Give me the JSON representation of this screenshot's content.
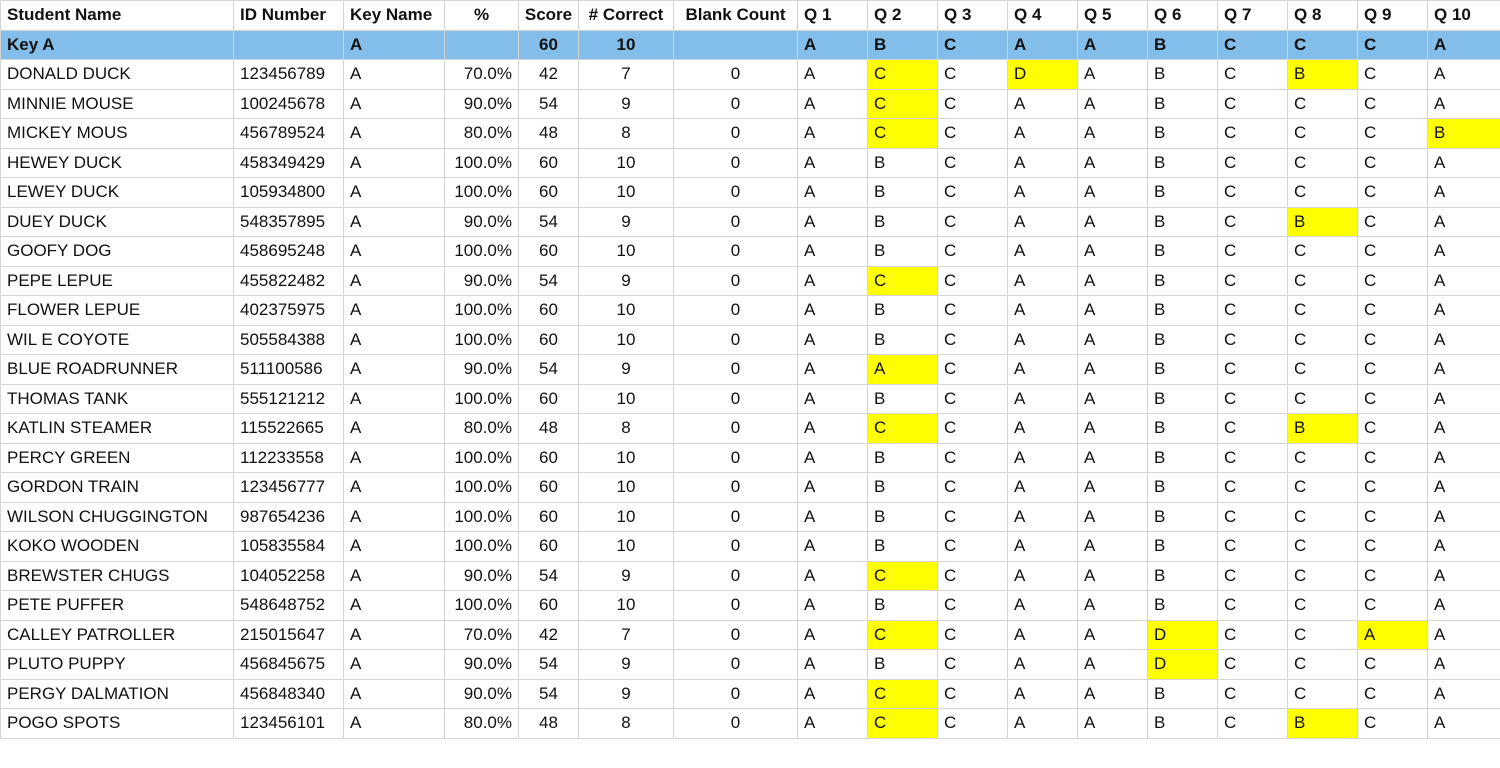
{
  "colors": {
    "key_row": "#83bde9",
    "wrong_answer": "#ffff00"
  },
  "headers": [
    "Student Name",
    "ID Number",
    "Key Name",
    "%",
    "Score",
    "# Correct",
    "Blank Count",
    "Q 1",
    "Q 2",
    "Q 3",
    "Q 4",
    "Q 5",
    "Q 6",
    "Q 7",
    "Q 8",
    "Q 9",
    "Q 10"
  ],
  "key_row": {
    "name": "Key A",
    "id": "",
    "key": "A",
    "pct": "",
    "score": "60",
    "correct": "10",
    "blank": "",
    "answers": [
      "A",
      "B",
      "C",
      "A",
      "A",
      "B",
      "C",
      "C",
      "C",
      "A"
    ]
  },
  "rows": [
    {
      "name": "DONALD DUCK",
      "id": "123456789",
      "key": "A",
      "pct": "70.0%",
      "score": "42",
      "correct": "7",
      "blank": "0",
      "answers": [
        "A",
        "C",
        "C",
        "D",
        "A",
        "B",
        "C",
        "B",
        "C",
        "A"
      ],
      "wrong": [
        false,
        true,
        false,
        true,
        false,
        false,
        false,
        true,
        false,
        false
      ]
    },
    {
      "name": "MINNIE MOUSE",
      "id": "100245678",
      "key": "A",
      "pct": "90.0%",
      "score": "54",
      "correct": "9",
      "blank": "0",
      "answers": [
        "A",
        "C",
        "C",
        "A",
        "A",
        "B",
        "C",
        "C",
        "C",
        "A"
      ],
      "wrong": [
        false,
        true,
        false,
        false,
        false,
        false,
        false,
        false,
        false,
        false
      ]
    },
    {
      "name": "MICKEY MOUS",
      "id": "456789524",
      "key": "A",
      "pct": "80.0%",
      "score": "48",
      "correct": "8",
      "blank": "0",
      "answers": [
        "A",
        "C",
        "C",
        "A",
        "A",
        "B",
        "C",
        "C",
        "C",
        "B"
      ],
      "wrong": [
        false,
        true,
        false,
        false,
        false,
        false,
        false,
        false,
        false,
        true
      ]
    },
    {
      "name": "HEWEY DUCK",
      "id": "458349429",
      "key": "A",
      "pct": "100.0%",
      "score": "60",
      "correct": "10",
      "blank": "0",
      "answers": [
        "A",
        "B",
        "C",
        "A",
        "A",
        "B",
        "C",
        "C",
        "C",
        "A"
      ],
      "wrong": [
        false,
        false,
        false,
        false,
        false,
        false,
        false,
        false,
        false,
        false
      ]
    },
    {
      "name": "LEWEY DUCK",
      "id": "105934800",
      "key": "A",
      "pct": "100.0%",
      "score": "60",
      "correct": "10",
      "blank": "0",
      "answers": [
        "A",
        "B",
        "C",
        "A",
        "A",
        "B",
        "C",
        "C",
        "C",
        "A"
      ],
      "wrong": [
        false,
        false,
        false,
        false,
        false,
        false,
        false,
        false,
        false,
        false
      ]
    },
    {
      "name": "DUEY DUCK",
      "id": "548357895",
      "key": "A",
      "pct": "90.0%",
      "score": "54",
      "correct": "9",
      "blank": "0",
      "answers": [
        "A",
        "B",
        "C",
        "A",
        "A",
        "B",
        "C",
        "B",
        "C",
        "A"
      ],
      "wrong": [
        false,
        false,
        false,
        false,
        false,
        false,
        false,
        true,
        false,
        false
      ]
    },
    {
      "name": "GOOFY DOG",
      "id": "458695248",
      "key": "A",
      "pct": "100.0%",
      "score": "60",
      "correct": "10",
      "blank": "0",
      "answers": [
        "A",
        "B",
        "C",
        "A",
        "A",
        "B",
        "C",
        "C",
        "C",
        "A"
      ],
      "wrong": [
        false,
        false,
        false,
        false,
        false,
        false,
        false,
        false,
        false,
        false
      ]
    },
    {
      "name": "PEPE LEPUE",
      "id": "455822482",
      "key": "A",
      "pct": "90.0%",
      "score": "54",
      "correct": "9",
      "blank": "0",
      "answers": [
        "A",
        "C",
        "C",
        "A",
        "A",
        "B",
        "C",
        "C",
        "C",
        "A"
      ],
      "wrong": [
        false,
        true,
        false,
        false,
        false,
        false,
        false,
        false,
        false,
        false
      ]
    },
    {
      "name": "FLOWER LEPUE",
      "id": "402375975",
      "key": "A",
      "pct": "100.0%",
      "score": "60",
      "correct": "10",
      "blank": "0",
      "answers": [
        "A",
        "B",
        "C",
        "A",
        "A",
        "B",
        "C",
        "C",
        "C",
        "A"
      ],
      "wrong": [
        false,
        false,
        false,
        false,
        false,
        false,
        false,
        false,
        false,
        false
      ]
    },
    {
      "name": "WIL E COYOTE",
      "id": "505584388",
      "key": "A",
      "pct": "100.0%",
      "score": "60",
      "correct": "10",
      "blank": "0",
      "answers": [
        "A",
        "B",
        "C",
        "A",
        "A",
        "B",
        "C",
        "C",
        "C",
        "A"
      ],
      "wrong": [
        false,
        false,
        false,
        false,
        false,
        false,
        false,
        false,
        false,
        false
      ]
    },
    {
      "name": "BLUE ROADRUNNER",
      "id": "511100586",
      "key": "A",
      "pct": "90.0%",
      "score": "54",
      "correct": "9",
      "blank": "0",
      "answers": [
        "A",
        "A",
        "C",
        "A",
        "A",
        "B",
        "C",
        "C",
        "C",
        "A"
      ],
      "wrong": [
        false,
        true,
        false,
        false,
        false,
        false,
        false,
        false,
        false,
        false
      ]
    },
    {
      "name": "THOMAS TANK",
      "id": "555121212",
      "key": "A",
      "pct": "100.0%",
      "score": "60",
      "correct": "10",
      "blank": "0",
      "answers": [
        "A",
        "B",
        "C",
        "A",
        "A",
        "B",
        "C",
        "C",
        "C",
        "A"
      ],
      "wrong": [
        false,
        false,
        false,
        false,
        false,
        false,
        false,
        false,
        false,
        false
      ]
    },
    {
      "name": "KATLIN STEAMER",
      "id": "115522665",
      "key": "A",
      "pct": "80.0%",
      "score": "48",
      "correct": "8",
      "blank": "0",
      "answers": [
        "A",
        "C",
        "C",
        "A",
        "A",
        "B",
        "C",
        "B",
        "C",
        "A"
      ],
      "wrong": [
        false,
        true,
        false,
        false,
        false,
        false,
        false,
        true,
        false,
        false
      ]
    },
    {
      "name": "PERCY GREEN",
      "id": "112233558",
      "key": "A",
      "pct": "100.0%",
      "score": "60",
      "correct": "10",
      "blank": "0",
      "answers": [
        "A",
        "B",
        "C",
        "A",
        "A",
        "B",
        "C",
        "C",
        "C",
        "A"
      ],
      "wrong": [
        false,
        false,
        false,
        false,
        false,
        false,
        false,
        false,
        false,
        false
      ]
    },
    {
      "name": "GORDON TRAIN",
      "id": "123456777",
      "key": "A",
      "pct": "100.0%",
      "score": "60",
      "correct": "10",
      "blank": "0",
      "answers": [
        "A",
        "B",
        "C",
        "A",
        "A",
        "B",
        "C",
        "C",
        "C",
        "A"
      ],
      "wrong": [
        false,
        false,
        false,
        false,
        false,
        false,
        false,
        false,
        false,
        false
      ]
    },
    {
      "name": "WILSON CHUGGINGTON",
      "id": "987654236",
      "key": "A",
      "pct": "100.0%",
      "score": "60",
      "correct": "10",
      "blank": "0",
      "answers": [
        "A",
        "B",
        "C",
        "A",
        "A",
        "B",
        "C",
        "C",
        "C",
        "A"
      ],
      "wrong": [
        false,
        false,
        false,
        false,
        false,
        false,
        false,
        false,
        false,
        false
      ]
    },
    {
      "name": "KOKO WOODEN",
      "id": "105835584",
      "key": "A",
      "pct": "100.0%",
      "score": "60",
      "correct": "10",
      "blank": "0",
      "answers": [
        "A",
        "B",
        "C",
        "A",
        "A",
        "B",
        "C",
        "C",
        "C",
        "A"
      ],
      "wrong": [
        false,
        false,
        false,
        false,
        false,
        false,
        false,
        false,
        false,
        false
      ]
    },
    {
      "name": "BREWSTER CHUGS",
      "id": "104052258",
      "key": "A",
      "pct": "90.0%",
      "score": "54",
      "correct": "9",
      "blank": "0",
      "answers": [
        "A",
        "C",
        "C",
        "A",
        "A",
        "B",
        "C",
        "C",
        "C",
        "A"
      ],
      "wrong": [
        false,
        true,
        false,
        false,
        false,
        false,
        false,
        false,
        false,
        false
      ]
    },
    {
      "name": "PETE PUFFER",
      "id": "548648752",
      "key": "A",
      "pct": "100.0%",
      "score": "60",
      "correct": "10",
      "blank": "0",
      "answers": [
        "A",
        "B",
        "C",
        "A",
        "A",
        "B",
        "C",
        "C",
        "C",
        "A"
      ],
      "wrong": [
        false,
        false,
        false,
        false,
        false,
        false,
        false,
        false,
        false,
        false
      ]
    },
    {
      "name": "CALLEY PATROLLER",
      "id": "215015647",
      "key": "A",
      "pct": "70.0%",
      "score": "42",
      "correct": "7",
      "blank": "0",
      "answers": [
        "A",
        "C",
        "C",
        "A",
        "A",
        "D",
        "C",
        "C",
        "A",
        "A"
      ],
      "wrong": [
        false,
        true,
        false,
        false,
        false,
        true,
        false,
        false,
        true,
        false
      ]
    },
    {
      "name": "PLUTO PUPPY",
      "id": "456845675",
      "key": "A",
      "pct": "90.0%",
      "score": "54",
      "correct": "9",
      "blank": "0",
      "answers": [
        "A",
        "B",
        "C",
        "A",
        "A",
        "D",
        "C",
        "C",
        "C",
        "A"
      ],
      "wrong": [
        false,
        false,
        false,
        false,
        false,
        true,
        false,
        false,
        false,
        false
      ]
    },
    {
      "name": "PERGY DALMATION",
      "id": "456848340",
      "key": "A",
      "pct": "90.0%",
      "score": "54",
      "correct": "9",
      "blank": "0",
      "answers": [
        "A",
        "C",
        "C",
        "A",
        "A",
        "B",
        "C",
        "C",
        "C",
        "A"
      ],
      "wrong": [
        false,
        true,
        false,
        false,
        false,
        false,
        false,
        false,
        false,
        false
      ]
    },
    {
      "name": "POGO SPOTS",
      "id": "123456101",
      "key": "A",
      "pct": "80.0%",
      "score": "48",
      "correct": "8",
      "blank": "0",
      "answers": [
        "A",
        "C",
        "C",
        "A",
        "A",
        "B",
        "C",
        "B",
        "C",
        "A"
      ],
      "wrong": [
        false,
        true,
        false,
        false,
        false,
        false,
        false,
        true,
        false,
        false
      ]
    }
  ]
}
